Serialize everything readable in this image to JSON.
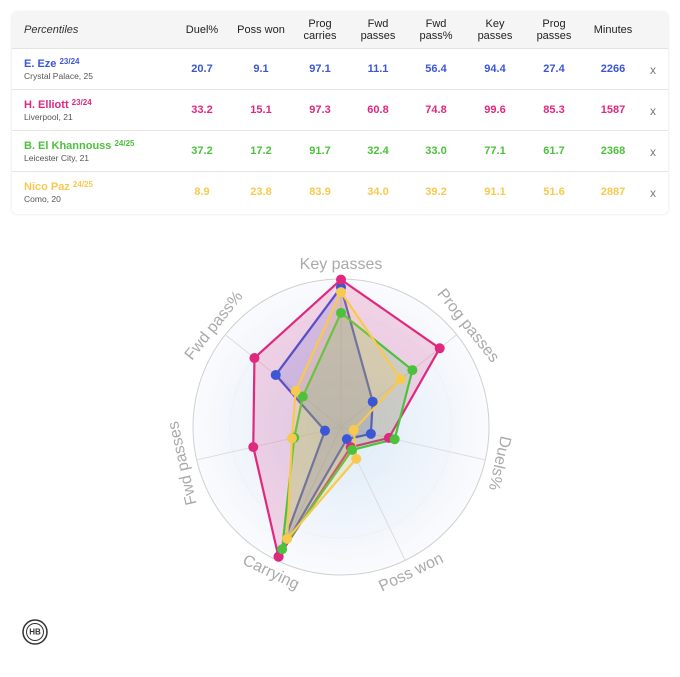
{
  "table": {
    "title": "Percentiles",
    "columns": [
      "Duel%",
      "Poss won",
      "Prog carries",
      "Fwd passes",
      "Fwd pass%",
      "Key passes",
      "Prog passes",
      "Minutes"
    ],
    "remove_label": "x"
  },
  "chart_data": {
    "type": "radar",
    "categories": [
      "Key passes",
      "Prog passes",
      "Duels%",
      "Poss won",
      "Carrying",
      "Fwd passes",
      "Fwd pass%"
    ],
    "rlim": [
      0,
      100
    ],
    "rticks": [
      25,
      50,
      75,
      100
    ],
    "series": [
      {
        "name": "E. Eze",
        "season": "23/24",
        "club": "Crystal Palace, 25",
        "color": "#3b57d6",
        "minutes": 2266,
        "values": [
          94.4,
          27.4,
          20.7,
          9.1,
          97.1,
          11.1,
          56.4
        ]
      },
      {
        "name": "H. Elliott",
        "season": "23/24",
        "club": "Liverpool, 21",
        "color": "#e0287f",
        "minutes": 1587,
        "values": [
          99.6,
          85.3,
          33.2,
          15.1,
          97.3,
          60.8,
          74.8
        ]
      },
      {
        "name": "B. El Khannouss",
        "season": "24/25",
        "club": "Leicester City, 21",
        "color": "#4cc23c",
        "minutes": 2368,
        "values": [
          77.1,
          61.7,
          37.2,
          17.2,
          91.7,
          32.4,
          33.0
        ],
        "value_labels": [
          "77.1",
          "61.7",
          "37.2",
          "17.2",
          "91.7",
          "32.4",
          "33.0"
        ]
      },
      {
        "name": "Nico Paz",
        "season": "24/25",
        "club": "Como, 20",
        "color": "#f7c94e",
        "minutes": 2887,
        "values": [
          91.1,
          51.6,
          8.9,
          23.8,
          83.9,
          34.0,
          39.2
        ],
        "value_labels": [
          "91.1",
          "51.6",
          "8.9",
          "23.8",
          "83.9",
          "34.0",
          "39.2"
        ]
      }
    ]
  },
  "logo": "HB"
}
